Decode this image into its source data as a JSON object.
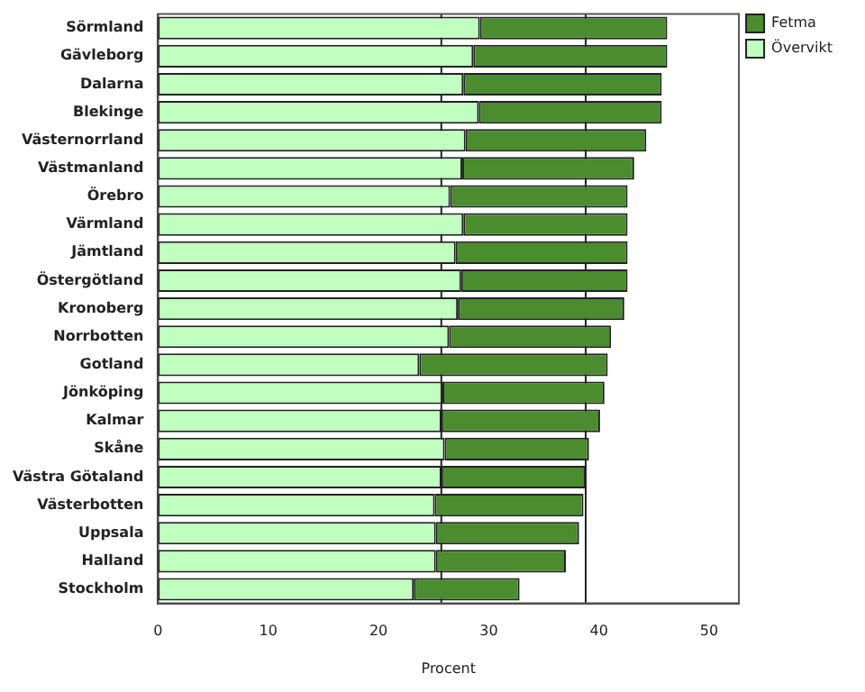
{
  "chart_data": {
    "type": "bar",
    "orientation": "horizontal",
    "stacked": true,
    "xlabel": "Procent",
    "categories": [
      "Sörmland",
      "Gävleborg",
      "Dalarna",
      "Blekinge",
      "Västernorrland",
      "Västmanland",
      "Örebro",
      "Värmland",
      "Jämtland",
      "Östergötland",
      "Kronoberg",
      "Norrbotten",
      "Gotland",
      "Jönköping",
      "Kalmar",
      "Skåne",
      "Västra Götaland",
      "Västerbotten",
      "Uppsala",
      "Halland",
      "Stockholm"
    ],
    "series": [
      {
        "name": "Övervikt",
        "color": "#c0ffc0",
        "values": [
          29.2,
          28.6,
          27.7,
          29.1,
          27.9,
          27.6,
          26.5,
          27.7,
          27.0,
          27.5,
          27.2,
          26.4,
          23.7,
          25.8,
          25.7,
          26.0,
          25.7,
          25.1,
          25.2,
          25.2,
          23.2
        ]
      },
      {
        "name": "Fetma",
        "color": "#4a8c2e",
        "values": [
          17.0,
          17.6,
          18.0,
          16.6,
          16.4,
          15.6,
          16.1,
          14.9,
          15.6,
          15.1,
          15.1,
          14.7,
          17.1,
          14.7,
          14.4,
          13.1,
          13.1,
          13.5,
          13.0,
          11.8,
          9.6
        ]
      }
    ],
    "xlim": [
      0,
      52.7
    ],
    "xticks": [
      0,
      10,
      20,
      30,
      40,
      50
    ],
    "grid": false,
    "legend": "top right",
    "ref_lines": [
      {
        "axis": "x",
        "value": 25.7,
        "color": "#222222"
      },
      {
        "axis": "x",
        "value": 38.8,
        "color": "#222222"
      }
    ]
  }
}
